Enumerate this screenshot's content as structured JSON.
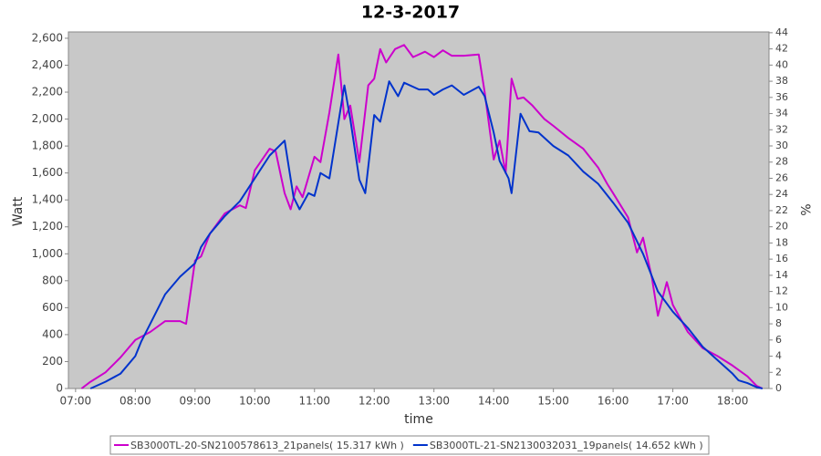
{
  "chart_data": {
    "type": "line",
    "title": "12-3-2017",
    "x_label": "time",
    "y_label": "Watt",
    "y2_label": "%",
    "xlim": [
      6.88,
      18.61
    ],
    "ylim": [
      0,
      2647
    ],
    "y2lim": [
      0,
      44.1
    ],
    "grid": false,
    "legend": "bottom",
    "xticks": [
      {
        "value": 7,
        "label": "07:00"
      },
      {
        "value": 8,
        "label": "08:00"
      },
      {
        "value": 9,
        "label": "09:00"
      },
      {
        "value": 10,
        "label": "10:00"
      },
      {
        "value": 11,
        "label": "11:00"
      },
      {
        "value": 12,
        "label": "12:00"
      },
      {
        "value": 13,
        "label": "13:00"
      },
      {
        "value": 14,
        "label": "14:00"
      },
      {
        "value": 15,
        "label": "15:00"
      },
      {
        "value": 16,
        "label": "16:00"
      },
      {
        "value": 17,
        "label": "17:00"
      },
      {
        "value": 18,
        "label": "18:00"
      }
    ],
    "yticks": [
      0,
      200,
      400,
      600,
      800,
      {
        "value": 1000,
        "label": "1,000"
      },
      {
        "value": 1200,
        "label": "1,200"
      },
      {
        "value": 1400,
        "label": "1,400"
      },
      {
        "value": 1600,
        "label": "1,600"
      },
      {
        "value": 1800,
        "label": "1,800"
      },
      {
        "value": 2000,
        "label": "2,000"
      },
      {
        "value": 2200,
        "label": "2,200"
      },
      {
        "value": 2400,
        "label": "2,400"
      },
      {
        "value": 2600,
        "label": "2,600"
      }
    ],
    "y2ticks": [
      0,
      2,
      4,
      6,
      8,
      10,
      12,
      14,
      16,
      18,
      20,
      22,
      24,
      26,
      28,
      30,
      32,
      34,
      36,
      38,
      40,
      42,
      44
    ],
    "series": [
      {
        "name": "SB3000TL-20-SN2100578613_21panels( 15.317 kWh )",
        "color": "#cc00cc",
        "x": [
          7.1,
          7.25,
          7.5,
          7.75,
          8.0,
          8.25,
          8.5,
          8.75,
          8.85,
          9.0,
          9.1,
          9.25,
          9.5,
          9.75,
          9.85,
          10.0,
          10.25,
          10.35,
          10.5,
          10.6,
          10.7,
          10.8,
          11.0,
          11.1,
          11.25,
          11.4,
          11.5,
          11.6,
          11.75,
          11.9,
          12.0,
          12.1,
          12.2,
          12.35,
          12.5,
          12.65,
          12.85,
          13.0,
          13.15,
          13.3,
          13.5,
          13.75,
          13.85,
          14.0,
          14.1,
          14.2,
          14.3,
          14.4,
          14.5,
          14.65,
          14.85,
          15.0,
          15.25,
          15.5,
          15.75,
          15.9,
          16.0,
          16.25,
          16.4,
          16.5,
          16.65,
          16.75,
          16.9,
          17.0,
          17.25,
          17.5,
          17.75,
          18.0,
          18.25,
          18.4,
          18.5
        ],
        "values": [
          0,
          50,
          120,
          230,
          360,
          420,
          500,
          500,
          480,
          950,
          980,
          1150,
          1300,
          1360,
          1340,
          1620,
          1780,
          1760,
          1450,
          1330,
          1500,
          1420,
          1720,
          1680,
          2050,
          2480,
          2000,
          2100,
          1680,
          2250,
          2300,
          2520,
          2420,
          2520,
          2550,
          2460,
          2500,
          2460,
          2510,
          2470,
          2470,
          2480,
          2200,
          1700,
          1840,
          1600,
          2300,
          2150,
          2160,
          2100,
          2000,
          1950,
          1860,
          1780,
          1640,
          1520,
          1450,
          1270,
          1010,
          1120,
          820,
          540,
          790,
          620,
          420,
          300,
          240,
          170,
          90,
          20,
          0
        ]
      },
      {
        "name": "SB3000TL-21-SN2130032031_19panels( 14.652 kWh )",
        "color": "#0033cc",
        "x": [
          7.25,
          7.5,
          7.75,
          8.0,
          8.1,
          8.25,
          8.5,
          8.75,
          9.0,
          9.1,
          9.25,
          9.5,
          9.75,
          10.0,
          10.25,
          10.5,
          10.65,
          10.75,
          10.9,
          11.0,
          11.1,
          11.25,
          11.5,
          11.6,
          11.75,
          11.85,
          12.0,
          12.1,
          12.25,
          12.4,
          12.5,
          12.75,
          12.9,
          13.0,
          13.15,
          13.3,
          13.5,
          13.75,
          13.85,
          14.0,
          14.1,
          14.25,
          14.3,
          14.45,
          14.6,
          14.75,
          15.0,
          15.25,
          15.5,
          15.75,
          16.0,
          16.25,
          16.5,
          16.75,
          17.0,
          17.25,
          17.5,
          17.75,
          18.0,
          18.1,
          18.25,
          18.4,
          18.5
        ],
        "values": [
          0,
          50,
          110,
          240,
          350,
          480,
          700,
          830,
          930,
          1050,
          1150,
          1280,
          1390,
          1560,
          1730,
          1840,
          1420,
          1330,
          1450,
          1430,
          1600,
          1560,
          2250,
          2000,
          1550,
          1450,
          2030,
          1980,
          2280,
          2170,
          2270,
          2220,
          2220,
          2180,
          2220,
          2250,
          2180,
          2240,
          2170,
          1900,
          1690,
          1560,
          1450,
          2040,
          1910,
          1900,
          1800,
          1730,
          1610,
          1520,
          1380,
          1230,
          1000,
          720,
          570,
          450,
          310,
          210,
          110,
          60,
          40,
          10,
          0
        ]
      }
    ]
  }
}
